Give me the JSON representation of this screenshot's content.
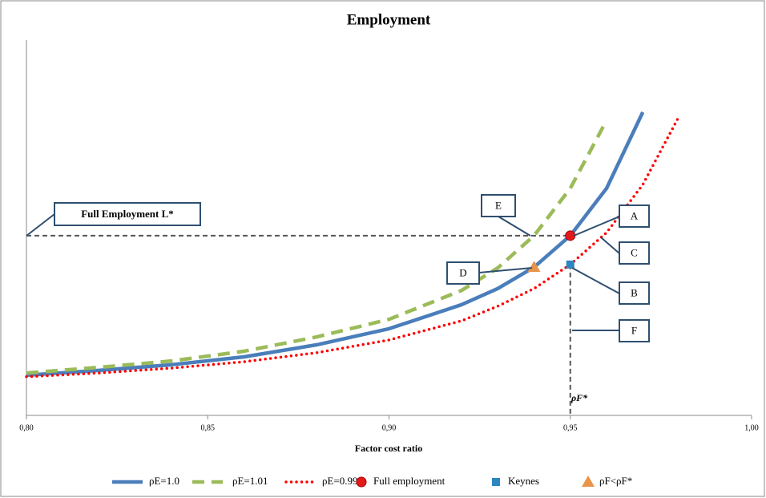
{
  "chart_data": {
    "type": "line",
    "title": "Employment",
    "x_label": "Factor cost ratio",
    "xlim": [
      0.8,
      1.0
    ],
    "xticks": [
      {
        "value": 0.8,
        "label": "0,80"
      },
      {
        "value": 0.85,
        "label": "0,85"
      },
      {
        "value": 0.9,
        "label": "0,90"
      },
      {
        "value": 0.95,
        "label": "0,95"
      },
      {
        "value": 1.0,
        "label": "1,00"
      }
    ],
    "ylim": [
      0,
      100
    ],
    "series": [
      {
        "name": "ρE=1.0",
        "color": "#4a7ebb",
        "style": "solid",
        "x": [
          0.8,
          0.82,
          0.84,
          0.86,
          0.88,
          0.9,
          0.92,
          0.93,
          0.94,
          0.95,
          0.96,
          0.97
        ],
        "values": [
          10.7,
          12.0,
          13.5,
          15.6,
          18.8,
          23.1,
          29.5,
          33.8,
          39.5,
          47.9,
          60.5,
          80.8
        ]
      },
      {
        "name": "ρE=1.01",
        "color": "#9bbb59",
        "style": "dashed",
        "x": [
          0.8,
          0.82,
          0.84,
          0.86,
          0.88,
          0.9,
          0.92,
          0.93,
          0.94,
          0.95,
          0.96
        ],
        "values": [
          11.3,
          12.8,
          14.5,
          17.1,
          20.9,
          25.6,
          33.3,
          39.3,
          47.9,
          60.5,
          78.6
        ]
      },
      {
        "name": "ρE=0.99",
        "color": "#ff0000",
        "style": "dotted",
        "x": [
          0.8,
          0.82,
          0.84,
          0.86,
          0.88,
          0.9,
          0.92,
          0.93,
          0.94,
          0.95,
          0.96,
          0.97,
          0.98
        ],
        "values": [
          10.3,
          11.3,
          12.6,
          14.3,
          16.7,
          20.1,
          25.2,
          29.1,
          33.8,
          40.2,
          48.7,
          61.5,
          79.7
        ]
      }
    ],
    "markers": [
      {
        "name": "Full employment",
        "color": "#e31a1c",
        "shape": "circle",
        "x": 0.95,
        "y": 47.9
      },
      {
        "name": "Keynes",
        "color": "#2e86c1",
        "shape": "square",
        "x": 0.95,
        "y": 40.2
      },
      {
        "name": "ρF<ρF*",
        "color": "#e8954a",
        "shape": "triangle",
        "x": 0.94,
        "y": 39.5
      }
    ],
    "annotations": [
      "Full Employment L*",
      "E",
      "A",
      "C",
      "B",
      "D",
      "F",
      "ρF*"
    ]
  }
}
